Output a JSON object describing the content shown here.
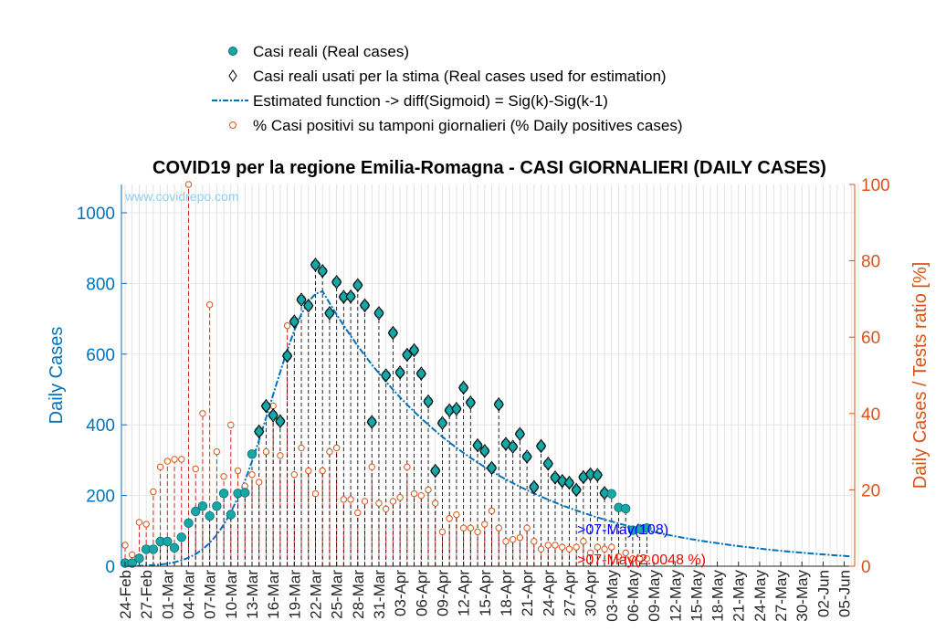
{
  "chart_data": {
    "type": "scatter",
    "title": "COVID19 per la regione Emilia-Romagna - CASI GIORNALIERI (DAILY CASES)",
    "ylabel_left": "Daily Cases",
    "ylabel_right": "Daily Cases / Tests ratio [%]",
    "watermark": "www.covidrepo.com",
    "ylim_left": [
      0,
      1080
    ],
    "ylim_right": [
      0,
      100
    ],
    "yticks_left": [
      "0",
      "200",
      "400",
      "600",
      "800",
      "1000"
    ],
    "yticks_right": [
      "0",
      "20",
      "40",
      "60",
      "80",
      "100"
    ],
    "x_tick_labels": [
      "24-Feb",
      "27-Feb",
      "01-Mar",
      "04-Mar",
      "07-Mar",
      "10-Mar",
      "13-Mar",
      "16-Mar",
      "19-Mar",
      "22-Mar",
      "25-Mar",
      "28-Mar",
      "31-Mar",
      "03-Apr",
      "06-Apr",
      "09-Apr",
      "12-Apr",
      "15-Apr",
      "18-Apr",
      "21-Apr",
      "24-Apr",
      "27-Apr",
      "30-Apr",
      "03-May",
      "06-May",
      "09-May",
      "12-May",
      "15-May",
      "18-May",
      "21-May",
      "24-May",
      "27-May",
      "30-May",
      "02-Jun",
      "05-Jun"
    ],
    "legend": [
      {
        "label": "Casi reali (Real cases)",
        "marker": "filled-circle",
        "color": "#17A7A7"
      },
      {
        "label": "Casi reali usati per la stima (Real cases used for estimation)",
        "marker": "diamond",
        "color": "#000000"
      },
      {
        "label": "Estimated function -> diff(Sigmoid) = Sig(k)-Sig(k-1)",
        "marker": "dash-dot-line",
        "color": "#0072BD"
      },
      {
        "label": "% Casi positivi su tamponi giornalieri (% Daily positives cases)",
        "marker": "open-circle",
        "color": "#D95319"
      }
    ],
    "start_date": "24-Feb",
    "last_date": "07-May",
    "end_date": "06-Jun",
    "annotations": {
      "cases": ">07-May(108)",
      "ratio": ">07-May(2.0048 %)"
    },
    "series": [
      {
        "name": "Casi reali (Real cases)",
        "values": [
          9,
          9,
          22,
          48,
          48,
          70,
          70,
          52,
          82,
          122,
          155,
          170,
          142,
          170,
          206,
          146,
          206,
          208,
          317,
          381,
          453,
          427,
          410,
          595,
          692,
          754,
          737,
          853,
          835,
          716,
          804,
          762,
          763,
          795,
          738,
          408,
          716,
          540,
          660,
          548,
          598,
          611,
          545,
          466,
          270,
          405,
          441,
          445,
          505,
          463,
          342,
          326,
          278,
          458,
          346,
          338,
          374,
          310,
          224,
          340,
          290,
          251,
          241,
          236,
          216,
          252,
          260,
          258,
          207,
          205,
          166,
          163,
          102,
          105,
          108
        ]
      },
      {
        "name": "Casi reali usati per la stima (Real cases used for estimation)",
        "start_index": 19,
        "end_index": 68
      },
      {
        "name": "Estimated function -> diff(Sigmoid) = Sig(k)-Sig(k-1)",
        "peak_day": "23-Mar",
        "peak_value": 778,
        "end_value": 28
      },
      {
        "name": "% Casi positivi su tamponi giornalieri (% Daily positives cases)",
        "values": [
          5.5,
          3.0,
          11.5,
          11,
          19.5,
          26.0,
          27.5,
          28.0,
          28.0,
          100,
          25.5,
          40,
          68.5,
          30.0,
          23.5,
          37.0,
          25.0,
          21.0,
          24,
          22,
          30,
          42.0,
          29.0,
          63.0,
          24.0,
          31.0,
          25.0,
          19.0,
          25.0,
          30.0,
          31.0,
          17.5,
          17.5,
          14.0,
          17.0,
          26.0,
          16.5,
          15.0,
          17.0,
          18.0,
          26.0,
          19.0,
          18.5,
          20.0,
          16.5,
          9.0,
          12.5,
          13.5,
          10.0,
          10.0,
          9.0,
          11.0,
          14.5,
          10.0,
          6.5,
          7.0,
          7.5,
          10.0,
          6.5,
          4.5,
          5.5,
          5.5,
          5.0,
          4.5,
          5.0,
          6.5,
          3.5,
          5.0,
          4.5,
          5.0,
          2.5,
          3.5,
          2.0,
          2.0,
          2.0
        ]
      }
    ]
  }
}
